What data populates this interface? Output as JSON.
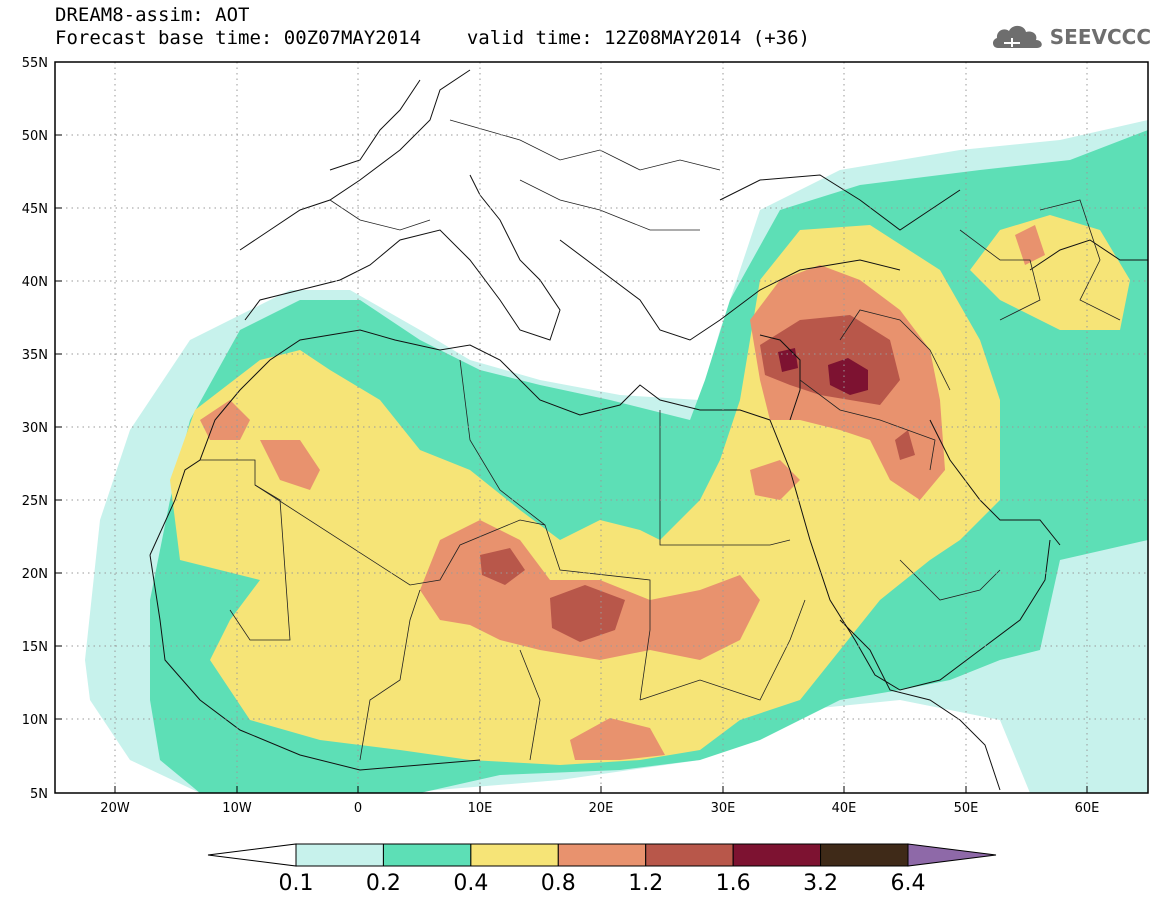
{
  "header": {
    "title": "DREAM8-assim: AOT",
    "base_time_label": "Forecast base time: 00Z07MAY2014",
    "valid_time_label": "valid time: 12Z08MAY2014 (+36)"
  },
  "logo": {
    "text": "SEEVCCC",
    "icon": "cloud-icon"
  },
  "axes": {
    "lat_labels": [
      "55N",
      "50N",
      "45N",
      "40N",
      "35N",
      "30N",
      "25N",
      "20N",
      "15N",
      "10N",
      "5N"
    ],
    "lon_labels": [
      "20W",
      "10W",
      "0",
      "10E",
      "20E",
      "30E",
      "40E",
      "50E",
      "60E"
    ]
  },
  "colorbar": {
    "ticks": [
      "0.1",
      "0.2",
      "0.4",
      "0.8",
      "1.2",
      "1.6",
      "3.2",
      "6.4"
    ],
    "colors": [
      "#ffffff",
      "#c7f2ec",
      "#5ddfb6",
      "#f6e477",
      "#e8926e",
      "#b8574a",
      "#7d1231",
      "#3f2a18",
      "#8e69a8"
    ]
  },
  "colors": {
    "level_01": "#c7f2ec",
    "level_02": "#5ddfb6",
    "level_04": "#f6e477",
    "level_08": "#e8926e",
    "level_12": "#b8574a",
    "level_16": "#7d1231",
    "level_32": "#3f2a18",
    "level_64": "#8e69a8"
  }
}
